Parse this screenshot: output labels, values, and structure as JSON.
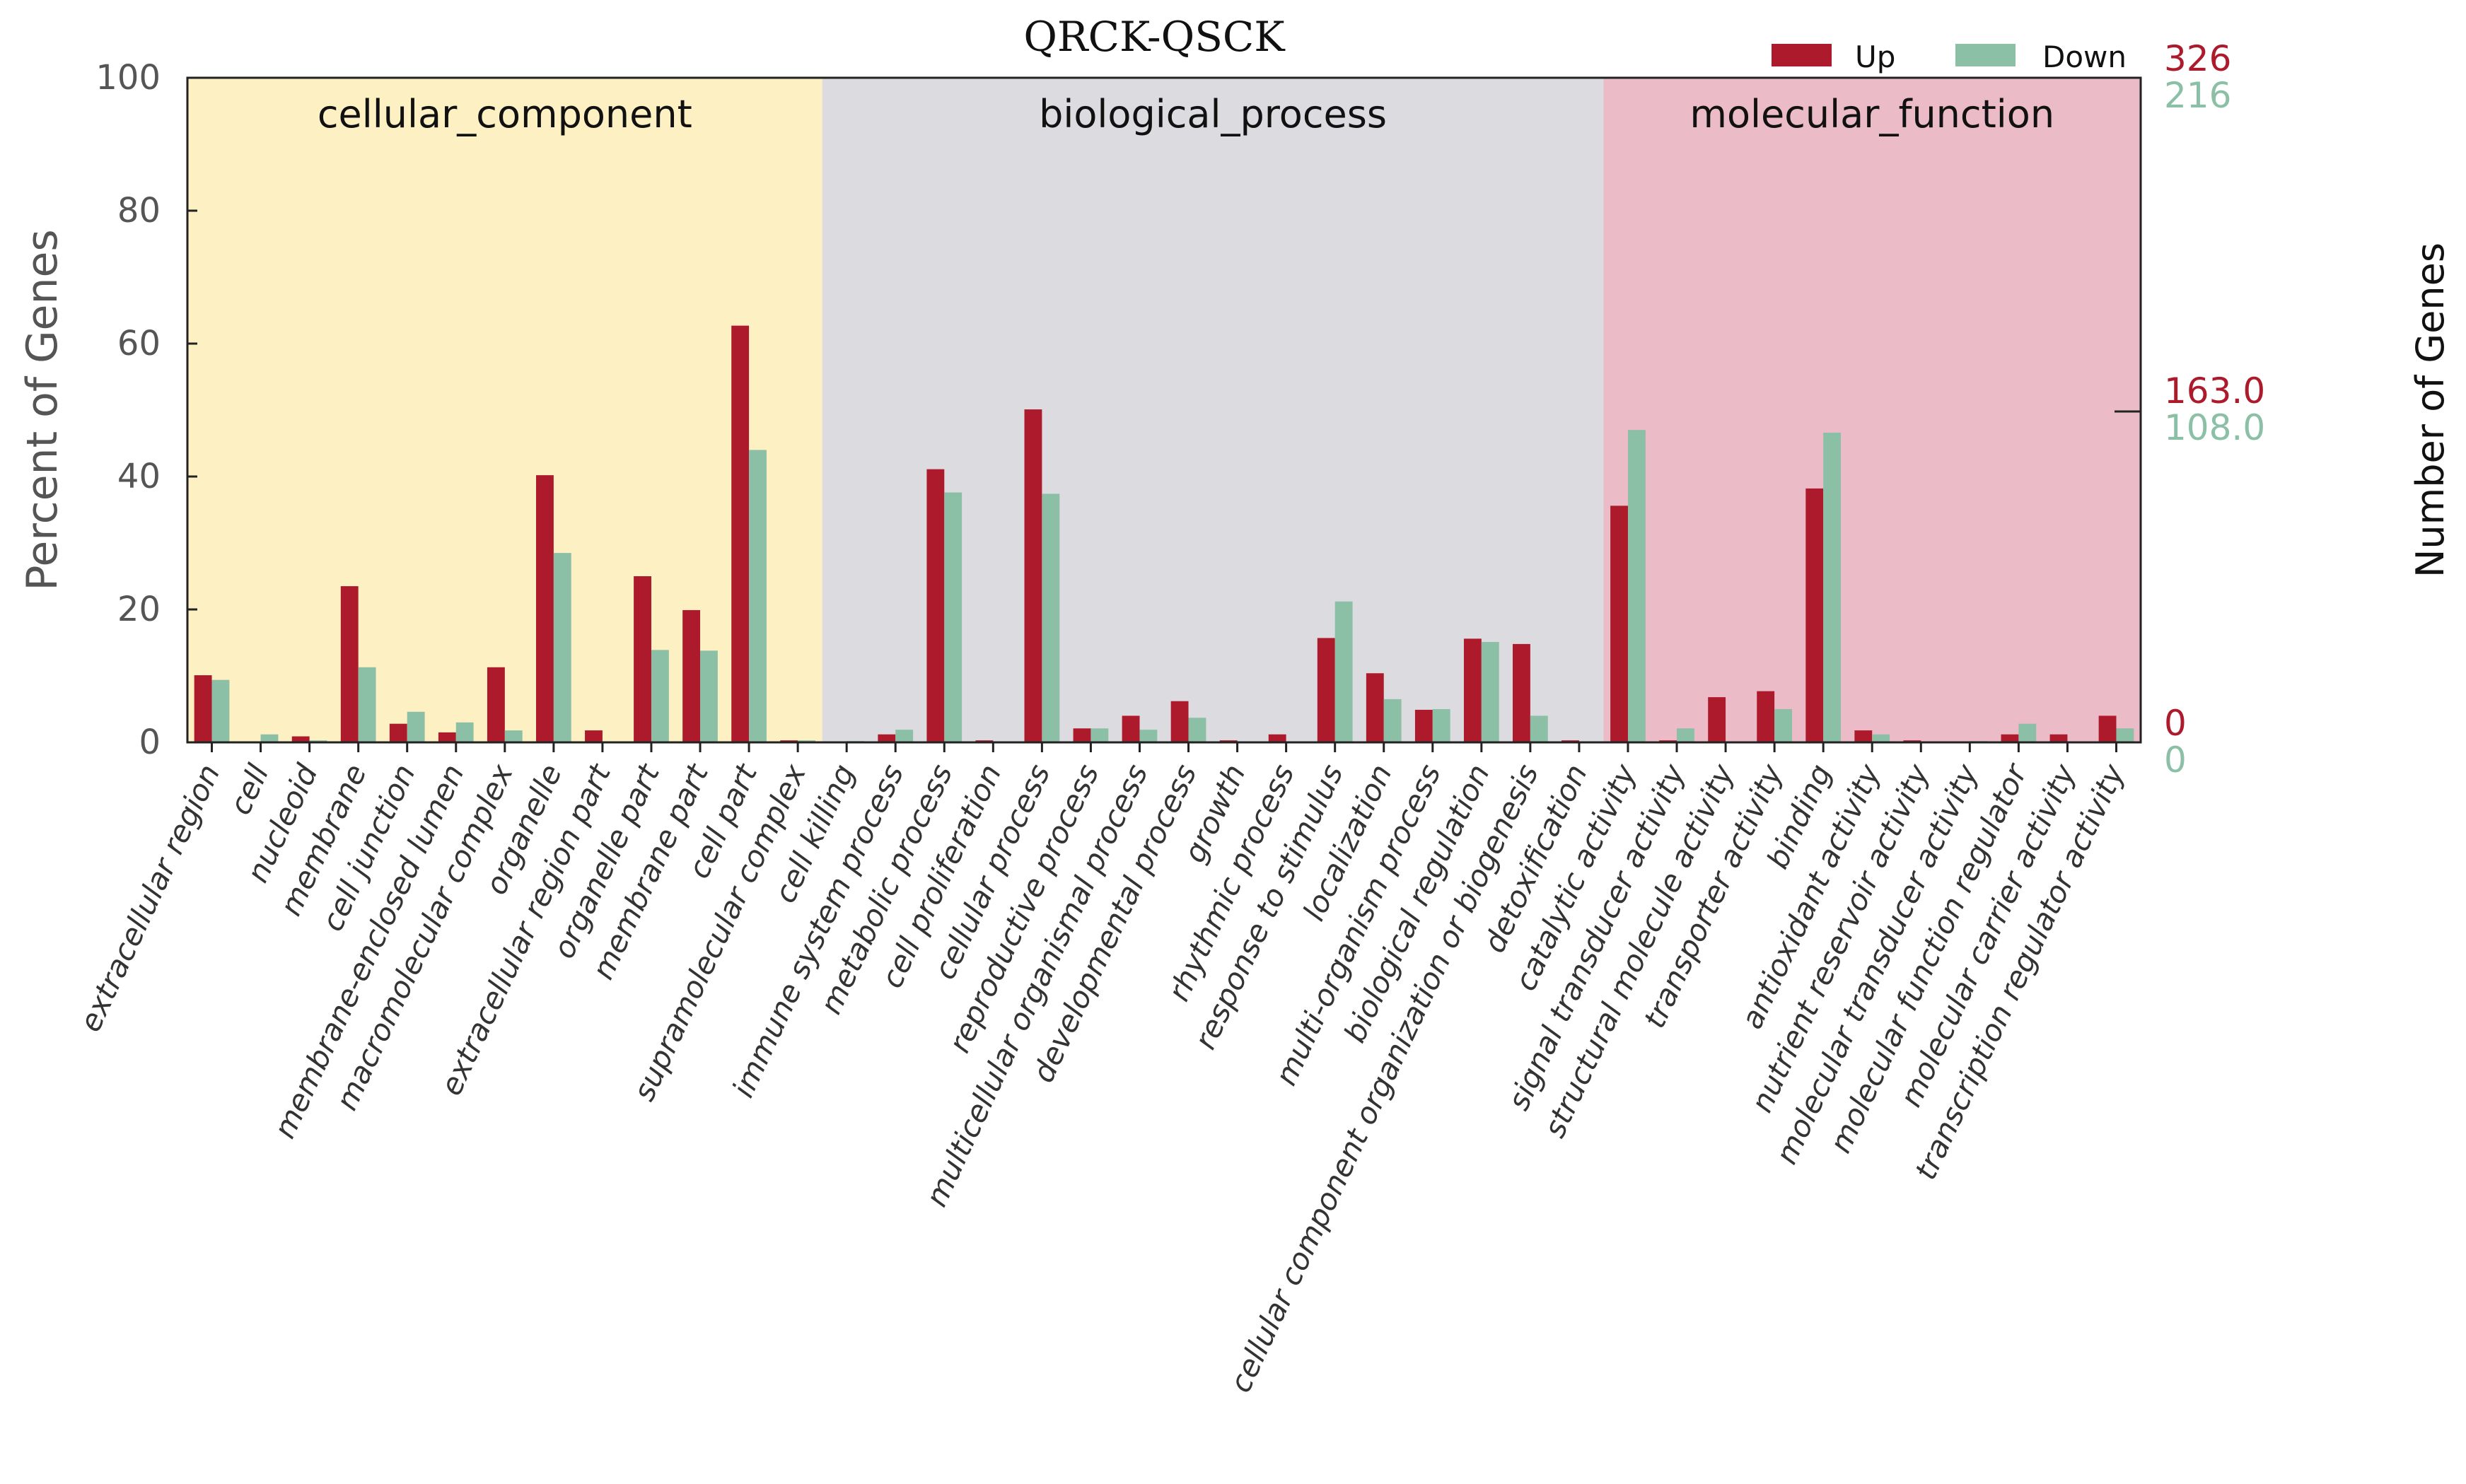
{
  "chart_data": {
    "type": "bar",
    "title": "QRCK-QSCK",
    "ylabel": "Percent of Genes",
    "ylabel_right": "Number of Genes",
    "ylim": [
      0,
      100
    ],
    "yticks": [
      "0",
      "20",
      "40",
      "60",
      "80",
      "100"
    ],
    "right_axis": {
      "up": {
        "top": "326",
        "mid": "163.0",
        "bottom": "0"
      },
      "down": {
        "top": "216",
        "mid": "108.0",
        "bottom": "0"
      }
    },
    "colors": {
      "up": "#ad1a2b",
      "down": "#8bbfa6"
    },
    "groups": [
      {
        "name": "cellular_component",
        "color": "#fdf0c3",
        "categories": [
          {
            "label": "extracellular region",
            "up": 10.1,
            "down": 9.4
          },
          {
            "label": "cell",
            "up": 0,
            "down": 1.2
          },
          {
            "label": "nucleoid",
            "up": 0.9,
            "down": 0.3
          },
          {
            "label": "membrane",
            "up": 23.5,
            "down": 11.3
          },
          {
            "label": "cell junction",
            "up": 2.8,
            "down": 4.6
          },
          {
            "label": "membrane-enclosed lumen",
            "up": 1.5,
            "down": 3.0
          },
          {
            "label": "macromolecular complex",
            "up": 11.3,
            "down": 1.8
          },
          {
            "label": "organelle",
            "up": 40.2,
            "down": 28.5
          },
          {
            "label": "extracellular region part",
            "up": 1.8,
            "down": 0
          },
          {
            "label": "organelle part",
            "up": 25.0,
            "down": 13.9
          },
          {
            "label": "membrane part",
            "up": 19.9,
            "down": 13.8
          },
          {
            "label": "cell part",
            "up": 62.7,
            "down": 44.0
          },
          {
            "label": "supramolecular complex",
            "up": 0.3,
            "down": 0.3
          }
        ]
      },
      {
        "name": "biological_process",
        "color": "#dcdbe0",
        "categories": [
          {
            "label": "cell killing",
            "up": 0,
            "down": 0.2
          },
          {
            "label": "immune system process",
            "up": 1.2,
            "down": 1.9
          },
          {
            "label": "metabolic process",
            "up": 41.1,
            "down": 37.6
          },
          {
            "label": "cell proliferation",
            "up": 0.3,
            "down": 0
          },
          {
            "label": "cellular process",
            "up": 50.1,
            "down": 37.4
          },
          {
            "label": "reproductive process",
            "up": 2.1,
            "down": 2.1
          },
          {
            "label": "multicellular organismal process",
            "up": 4.0,
            "down": 1.9
          },
          {
            "label": "developmental process",
            "up": 6.2,
            "down": 3.7
          },
          {
            "label": "growth",
            "up": 0.3,
            "down": 0
          },
          {
            "label": "rhythmic process",
            "up": 1.2,
            "down": 0
          },
          {
            "label": "response to stimulus",
            "up": 15.7,
            "down": 21.2
          },
          {
            "label": "localization",
            "up": 10.4,
            "down": 6.5
          },
          {
            "label": "multi-organism process",
            "up": 4.9,
            "down": 5.0
          },
          {
            "label": "biological regulation",
            "up": 15.6,
            "down": 15.1
          },
          {
            "label": "cellular component organization or biogenesis",
            "up": 14.8,
            "down": 4.0
          },
          {
            "label": "detoxification",
            "up": 0.3,
            "down": 0
          }
        ]
      },
      {
        "name": "molecular_function",
        "color": "#ebbcc8",
        "categories": [
          {
            "label": "catalytic activity",
            "up": 35.6,
            "down": 47.0
          },
          {
            "label": "signal transducer activity",
            "up": 0.3,
            "down": 2.1
          },
          {
            "label": "structural molecule activity",
            "up": 6.8,
            "down": 0
          },
          {
            "label": "transporter activity",
            "up": 7.7,
            "down": 5.0
          },
          {
            "label": "binding",
            "up": 38.2,
            "down": 46.6
          },
          {
            "label": "antioxidant activity",
            "up": 1.8,
            "down": 1.2
          },
          {
            "label": "nutrient reservoir activity",
            "up": 0.3,
            "down": 0
          },
          {
            "label": "molecular transducer activity",
            "up": 0,
            "down": 0.2
          },
          {
            "label": "molecular function regulator",
            "up": 1.2,
            "down": 2.8
          },
          {
            "label": "molecular carrier activity",
            "up": 1.2,
            "down": 0
          },
          {
            "label": "transcription regulator activity",
            "up": 4.0,
            "down": 2.1
          }
        ]
      }
    ],
    "legend": [
      {
        "name": "Up",
        "key": "up"
      },
      {
        "name": "Down",
        "key": "down"
      }
    ]
  }
}
